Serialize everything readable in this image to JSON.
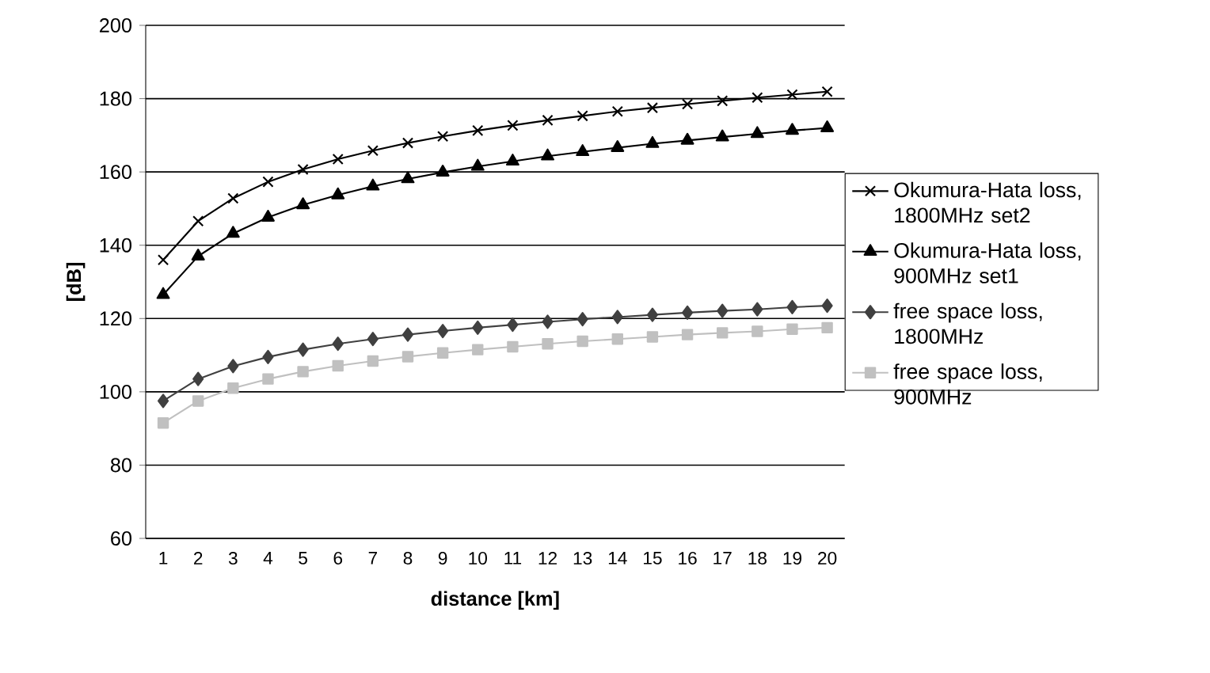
{
  "chart_data": {
    "type": "line",
    "xlabel": "distance [km]",
    "ylabel": "[dB]",
    "categories": [
      "1",
      "2",
      "3",
      "4",
      "5",
      "6",
      "7",
      "8",
      "9",
      "10",
      "11",
      "12",
      "13",
      "14",
      "15",
      "16",
      "17",
      "18",
      "19",
      "20"
    ],
    "ylim": [
      60,
      200
    ],
    "yticks": [
      60,
      80,
      100,
      120,
      140,
      160,
      180,
      200
    ],
    "grid": "y",
    "legend": "right",
    "series": [
      {
        "name": "Okumura-Hata loss, 1800MHz set2",
        "color": "#000000",
        "marker": "cross",
        "values": [
          136,
          146.6,
          152.8,
          157.3,
          160.7,
          163.5,
          165.8,
          167.9,
          169.7,
          171.3,
          172.7,
          174.1,
          175.3,
          176.5,
          177.5,
          178.5,
          179.4,
          180.3,
          181.1,
          181.9
        ]
      },
      {
        "name": "Okumura-Hata loss, 900MHz set1",
        "color": "#000000",
        "marker": "triangle",
        "values": [
          126.5,
          137.0,
          143.2,
          147.6,
          151.0,
          153.7,
          156.1,
          158.1,
          159.9,
          161.5,
          162.9,
          164.3,
          165.5,
          166.6,
          167.7,
          168.6,
          169.5,
          170.4,
          171.3,
          172.0
        ]
      },
      {
        "name": "free space loss, 1800MHz",
        "color": "#404040",
        "marker": "diamond",
        "values": [
          97.5,
          103.5,
          107.0,
          109.5,
          111.5,
          113.1,
          114.4,
          115.6,
          116.6,
          117.5,
          118.3,
          119.1,
          119.8,
          120.4,
          121.0,
          121.6,
          122.1,
          122.5,
          123.1,
          123.5
        ]
      },
      {
        "name": "free space loss, 900MHz",
        "color": "#c0c0c0",
        "marker": "square",
        "values": [
          91.5,
          97.5,
          101.0,
          103.5,
          105.5,
          107.1,
          108.4,
          109.6,
          110.6,
          111.5,
          112.3,
          113.1,
          113.8,
          114.4,
          115.0,
          115.6,
          116.1,
          116.5,
          117.1,
          117.5
        ]
      }
    ]
  }
}
